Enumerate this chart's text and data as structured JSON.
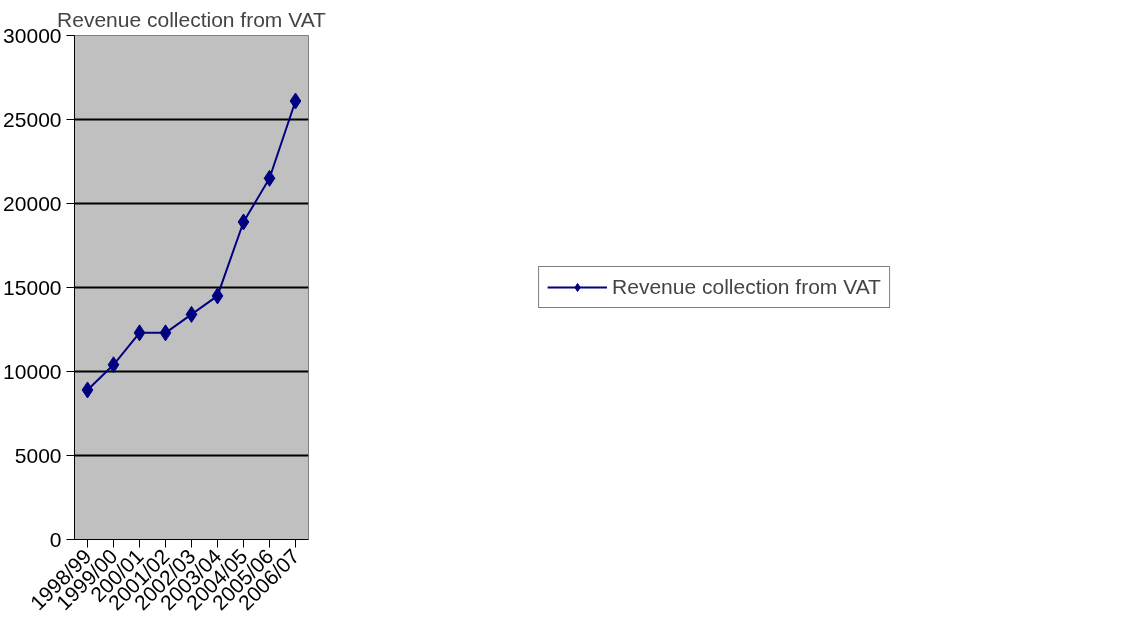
{
  "chart_data": {
    "type": "line",
    "title": "Revenue collection from VAT",
    "categories": [
      "1998/99",
      "1999/00",
      "200/01",
      "2001/02",
      "2002/03",
      "2003/04",
      "2004/05",
      "2005/06",
      "2006/07"
    ],
    "series": [
      {
        "name": "Revenue collection from VAT",
        "color": "#000080",
        "values": [
          8900,
          10400,
          12300,
          12300,
          13400,
          14500,
          18900,
          21500,
          26100
        ]
      }
    ],
    "ylim": [
      0,
      30000
    ],
    "yticks": [
      0,
      5000,
      10000,
      15000,
      20000,
      25000,
      30000
    ],
    "grid": "y",
    "legend": "right",
    "marker": "diamond",
    "line_style": "solid"
  }
}
